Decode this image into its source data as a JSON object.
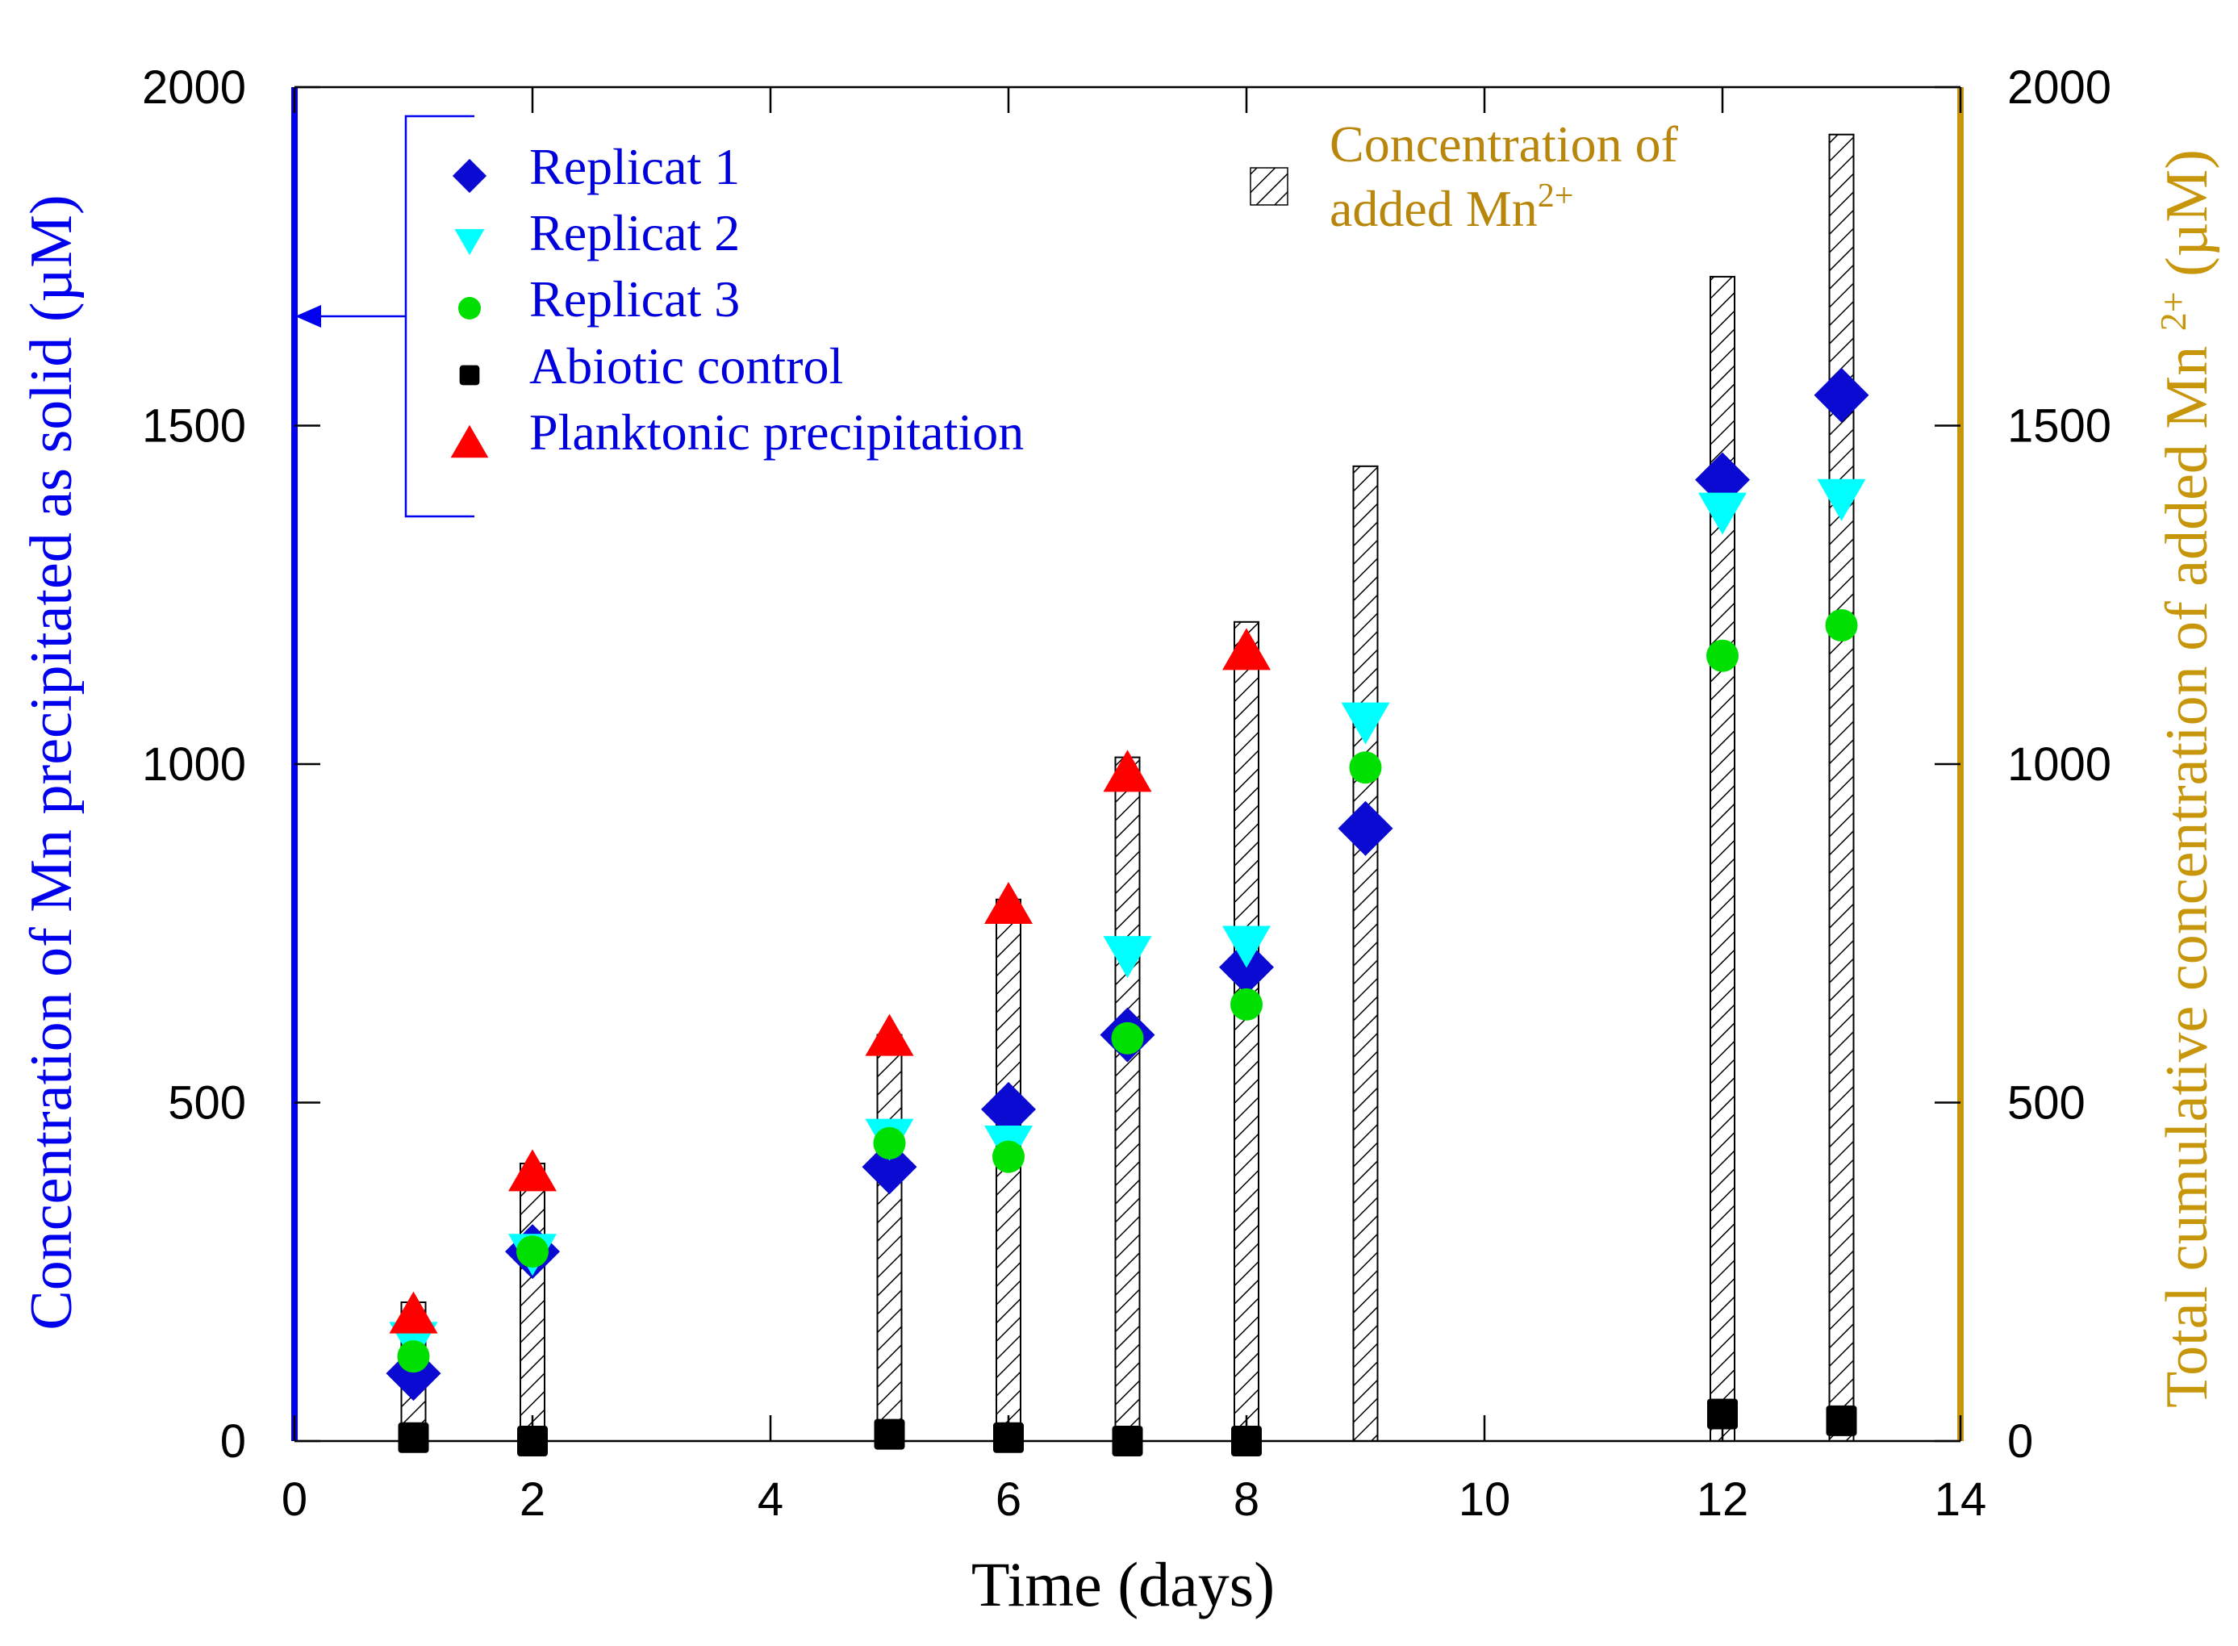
{
  "chart_data": {
    "type": "scatter+bar",
    "title": "",
    "xlabel": "Time (days)",
    "ylabel_left": "Concentration of Mn precipitated as solid (µM)",
    "ylabel_right_prefix": "Total cumulative concentration of added Mn ",
    "ylabel_right_sup": "2+",
    "ylabel_right_suffix": " (µM)",
    "xlim": [
      0,
      14
    ],
    "ylim": [
      0,
      2000
    ],
    "y2lim": [
      0,
      2000
    ],
    "x_ticks": [
      0,
      2,
      4,
      6,
      8,
      10,
      12,
      14
    ],
    "y_ticks": [
      0,
      500,
      1000,
      1500,
      2000
    ],
    "y2_ticks": [
      0,
      500,
      1000,
      1500,
      2000
    ],
    "colors": {
      "left_axis": "#0000ee",
      "right_axis": "#c8960a",
      "legend_text": "#0000dd",
      "bar_legend_text": "#b8860b"
    },
    "bars": {
      "name_line1": "Concentration of",
      "name_line2_prefix": "added Mn",
      "name_line2_sup": "2+",
      "axis": "right",
      "style": "hatched",
      "x": [
        1,
        2,
        5,
        6,
        7,
        8,
        9,
        12,
        13
      ],
      "values": [
        205,
        410,
        600,
        800,
        1010,
        1210,
        1440,
        1720,
        1930
      ]
    },
    "series": [
      {
        "name": "Replicat 1",
        "marker": "diamond",
        "color": "#0a0ad2",
        "x": [
          1,
          2,
          5,
          6,
          7,
          8,
          9,
          12,
          13
        ],
        "y": [
          100,
          280,
          405,
          490,
          600,
          700,
          905,
          1420,
          1545
        ]
      },
      {
        "name": "Replicat 2",
        "marker": "triangle-down",
        "color": "#00ffff",
        "x": [
          1,
          2,
          5,
          6,
          7,
          8,
          9,
          12,
          13
        ],
        "y": [
          145,
          275,
          445,
          435,
          715,
          730,
          1060,
          1370,
          1390
        ]
      },
      {
        "name": "Replicat 3",
        "marker": "circle",
        "color": "#00e000",
        "x": [
          1,
          2,
          5,
          6,
          7,
          8,
          9,
          12,
          13
        ],
        "y": [
          125,
          280,
          440,
          420,
          595,
          645,
          995,
          1160,
          1205
        ]
      },
      {
        "name": "Abiotic control",
        "marker": "square",
        "color": "#000000",
        "x": [
          1,
          2,
          5,
          6,
          7,
          8,
          12,
          13
        ],
        "y": [
          5,
          0,
          10,
          5,
          0,
          0,
          40,
          30
        ]
      },
      {
        "name": "Planktonic precipitation",
        "marker": "triangle-up",
        "color": "#ff0000",
        "x": [
          1,
          2,
          5,
          6,
          7,
          8
        ],
        "y": [
          190,
          400,
          600,
          795,
          990,
          1170
        ]
      }
    ],
    "legend_position": "top-left",
    "bar_legend_position": "top-right",
    "grid": false
  }
}
